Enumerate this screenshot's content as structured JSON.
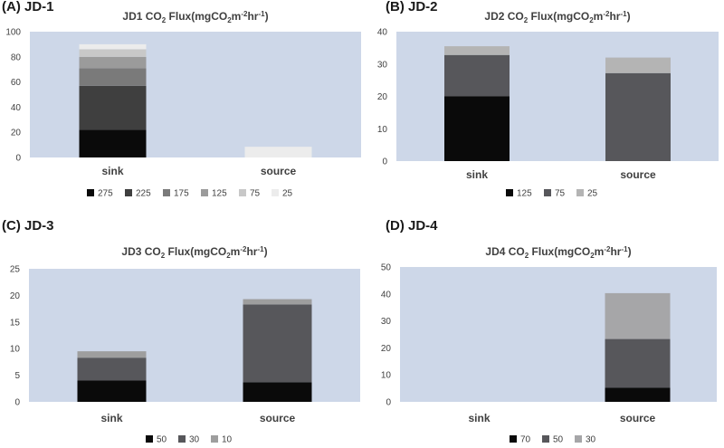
{
  "panels": [
    {
      "label": "(A) JD-1"
    },
    {
      "label": "(B) JD-2"
    },
    {
      "label": "(C) JD-3"
    },
    {
      "label": "(D) JD-4"
    }
  ],
  "chart_data": [
    {
      "type": "bar",
      "stacked": true,
      "title": "JD1 CO₂ Flux(mgCO₂m⁻²hr⁻¹)",
      "title_parts": {
        "pre": "JD1 CO",
        "sub1": "2",
        "mid": " Flux(mgCO",
        "sub2": "2",
        "mid2": "m",
        "sup1": "-2",
        "mid3": "hr",
        "sup2": "-1",
        "post": ")"
      },
      "categories": [
        "sink",
        "source"
      ],
      "ylim": [
        0,
        100
      ],
      "yticks": [
        0,
        20,
        40,
        60,
        80,
        100
      ],
      "plot_bg": "#cdd7e8",
      "legend_position": "bottom",
      "series": [
        {
          "name": "275",
          "color": "#0a0a0a",
          "values": [
            22,
            0
          ]
        },
        {
          "name": "225",
          "color": "#3f3f3f",
          "values": [
            35,
            0
          ]
        },
        {
          "name": "175",
          "color": "#7a7a7a",
          "values": [
            14,
            0
          ]
        },
        {
          "name": "125",
          "color": "#9b9b9b",
          "values": [
            9,
            0
          ]
        },
        {
          "name": "75",
          "color": "#c8c8c8",
          "values": [
            6,
            0
          ]
        },
        {
          "name": "25",
          "color": "#ececec",
          "values": [
            4,
            8.5
          ]
        }
      ]
    },
    {
      "type": "bar",
      "stacked": true,
      "title": "JD2 CO₂ Flux(mgCO₂m⁻²hr⁻¹)",
      "title_parts": {
        "pre": "JD2 CO",
        "sub1": "2",
        "mid": " Flux(mgCO",
        "sub2": "2",
        "mid2": "m",
        "sup1": "-2",
        "mid3": "hr",
        "sup2": "-1",
        "post": ")"
      },
      "categories": [
        "sink",
        "source"
      ],
      "ylim": [
        0,
        40
      ],
      "yticks": [
        0,
        10,
        20,
        30,
        40
      ],
      "plot_bg": "#cdd7e8",
      "legend_position": "bottom",
      "series": [
        {
          "name": "125",
          "color": "#0a0a0a",
          "values": [
            20,
            0
          ]
        },
        {
          "name": "75",
          "color": "#57575b",
          "values": [
            12.8,
            27.2
          ]
        },
        {
          "name": "25",
          "color": "#b4b4b4",
          "values": [
            2.7,
            4.8
          ]
        }
      ]
    },
    {
      "type": "bar",
      "stacked": true,
      "title": "JD3 CO₂ Flux(mgCO₂m⁻²hr⁻¹)",
      "title_parts": {
        "pre": "JD3 CO",
        "sub1": "2",
        "mid": " Flux(mgCO",
        "sub2": "2",
        "mid2": "m",
        "sup1": "-2",
        "mid3": "hr",
        "sup2": "-1",
        "post": ")"
      },
      "categories": [
        "sink",
        "source"
      ],
      "ylim": [
        0,
        25
      ],
      "yticks": [
        0,
        5,
        10,
        15,
        20,
        25
      ],
      "plot_bg": "#cdd7e8",
      "legend_position": "bottom",
      "series": [
        {
          "name": "50",
          "color": "#0a0a0a",
          "values": [
            4,
            3.7
          ]
        },
        {
          "name": "30",
          "color": "#57575b",
          "values": [
            4.3,
            14.6
          ]
        },
        {
          "name": "10",
          "color": "#9e9e9e",
          "values": [
            1.2,
            1
          ]
        }
      ]
    },
    {
      "type": "bar",
      "stacked": true,
      "title": "JD4 CO₂ Flux(mgCO₂m⁻²hr⁻¹)",
      "title_parts": {
        "pre": "JD4 CO",
        "sub1": "2",
        "mid": " Flux(mgCO",
        "sub2": "2",
        "mid2": "m",
        "sup1": "-2",
        "mid3": "hr",
        "sup2": "-1",
        "post": ")"
      },
      "categories": [
        "sink",
        "source"
      ],
      "ylim": [
        0,
        50
      ],
      "yticks": [
        0,
        10,
        20,
        30,
        40,
        50
      ],
      "plot_bg": "#cdd7e8",
      "legend_position": "bottom",
      "series": [
        {
          "name": "70",
          "color": "#0a0a0a",
          "values": [
            0,
            5.3
          ]
        },
        {
          "name": "50",
          "color": "#57575b",
          "values": [
            0,
            18
          ]
        },
        {
          "name": "30",
          "color": "#a6a6a8",
          "values": [
            0,
            17
          ]
        }
      ]
    }
  ]
}
